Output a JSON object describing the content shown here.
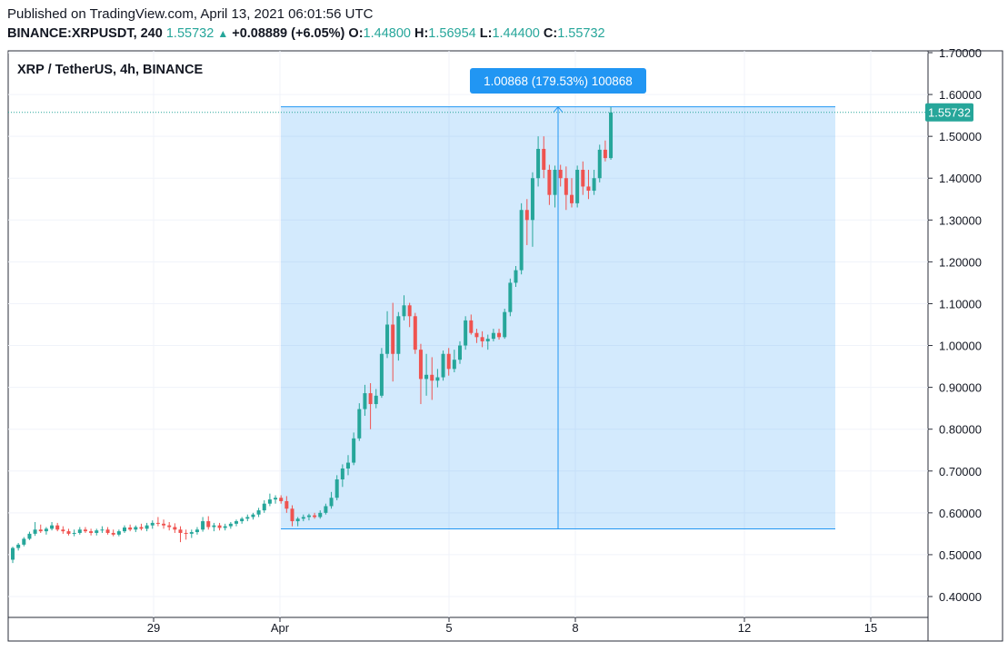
{
  "header": {
    "published": "Published on TradingView.com, April 13, 2021 06:01:56 UTC",
    "symbol": "BINANCE:XRPUSDT, 240",
    "last": "1.55732",
    "change": "+0.08889 (+6.05%)",
    "o_label": "O:",
    "o_value": "1.44800",
    "h_label": "H:",
    "h_value": "1.56954",
    "l_label": "L:",
    "l_value": "1.44400",
    "c_label": "C:",
    "c_value": "1.55732"
  },
  "chart_data": {
    "type": "candlestick",
    "title": "XRP / TetherUS, 4h, BINANCE",
    "ylim": [
      0.36,
      1.72
    ],
    "y_ticks": [
      "1.70000",
      "1.60000",
      "1.50000",
      "1.40000",
      "1.30000",
      "1.20000",
      "1.10000",
      "1.00000",
      "0.90000",
      "0.80000",
      "0.70000",
      "0.60000",
      "0.50000",
      "0.40000"
    ],
    "x_ticks": [
      "29",
      "Apr",
      "5",
      "8",
      "12",
      "15"
    ],
    "last_price_label": "1.55732",
    "last_price": 1.55732,
    "measure": {
      "label": "1.00868 (179.53%) 100868",
      "low": 0.5618,
      "high": 1.5705
    },
    "up_color": "#26a69a",
    "down_color": "#ef5350",
    "measure_color": "#2196f3",
    "candles": [
      [
        0.488,
        0.519,
        0.48,
        0.516
      ],
      [
        0.516,
        0.528,
        0.51,
        0.524
      ],
      [
        0.524,
        0.542,
        0.52,
        0.538
      ],
      [
        0.538,
        0.555,
        0.535,
        0.55
      ],
      [
        0.55,
        0.578,
        0.545,
        0.56
      ],
      [
        0.56,
        0.572,
        0.552,
        0.556
      ],
      [
        0.556,
        0.566,
        0.548,
        0.562
      ],
      [
        0.562,
        0.578,
        0.558,
        0.57
      ],
      [
        0.57,
        0.576,
        0.556,
        0.56
      ],
      [
        0.56,
        0.568,
        0.55,
        0.556
      ],
      [
        0.556,
        0.562,
        0.546,
        0.55
      ],
      [
        0.55,
        0.56,
        0.544,
        0.552
      ],
      [
        0.552,
        0.566,
        0.548,
        0.56
      ],
      [
        0.56,
        0.566,
        0.552,
        0.556
      ],
      [
        0.556,
        0.562,
        0.546,
        0.552
      ],
      [
        0.552,
        0.562,
        0.546,
        0.558
      ],
      [
        0.558,
        0.568,
        0.552,
        0.56
      ],
      [
        0.56,
        0.566,
        0.548,
        0.552
      ],
      [
        0.552,
        0.56,
        0.544,
        0.548
      ],
      [
        0.548,
        0.56,
        0.544,
        0.556
      ],
      [
        0.556,
        0.57,
        0.552,
        0.565
      ],
      [
        0.565,
        0.572,
        0.556,
        0.56
      ],
      [
        0.56,
        0.57,
        0.554,
        0.566
      ],
      [
        0.566,
        0.574,
        0.558,
        0.562
      ],
      [
        0.562,
        0.576,
        0.556,
        0.57
      ],
      [
        0.57,
        0.582,
        0.562,
        0.576
      ],
      [
        0.576,
        0.59,
        0.568,
        0.574
      ],
      [
        0.574,
        0.584,
        0.562,
        0.57
      ],
      [
        0.57,
        0.578,
        0.558,
        0.566
      ],
      [
        0.566,
        0.575,
        0.552,
        0.56
      ],
      [
        0.56,
        0.568,
        0.53,
        0.552
      ],
      [
        0.552,
        0.56,
        0.536,
        0.55
      ],
      [
        0.55,
        0.56,
        0.54,
        0.554
      ],
      [
        0.554,
        0.566,
        0.548,
        0.56
      ],
      [
        0.56,
        0.59,
        0.555,
        0.58
      ],
      [
        0.58,
        0.592,
        0.56,
        0.566
      ],
      [
        0.566,
        0.576,
        0.556,
        0.57
      ],
      [
        0.57,
        0.576,
        0.558,
        0.564
      ],
      [
        0.564,
        0.574,
        0.558,
        0.568
      ],
      [
        0.568,
        0.578,
        0.562,
        0.574
      ],
      [
        0.574,
        0.584,
        0.568,
        0.58
      ],
      [
        0.58,
        0.59,
        0.574,
        0.586
      ],
      [
        0.586,
        0.596,
        0.58,
        0.59
      ],
      [
        0.59,
        0.6,
        0.584,
        0.596
      ],
      [
        0.596,
        0.612,
        0.59,
        0.606
      ],
      [
        0.606,
        0.63,
        0.6,
        0.622
      ],
      [
        0.622,
        0.646,
        0.616,
        0.632
      ],
      [
        0.632,
        0.642,
        0.622,
        0.636
      ],
      [
        0.636,
        0.642,
        0.622,
        0.628
      ],
      [
        0.628,
        0.64,
        0.6,
        0.61
      ],
      [
        0.61,
        0.618,
        0.568,
        0.58
      ],
      [
        0.58,
        0.59,
        0.568,
        0.586
      ],
      [
        0.586,
        0.596,
        0.58,
        0.59
      ],
      [
        0.59,
        0.598,
        0.582,
        0.594
      ],
      [
        0.594,
        0.6,
        0.586,
        0.59
      ],
      [
        0.59,
        0.606,
        0.586,
        0.6
      ],
      [
        0.6,
        0.622,
        0.596,
        0.616
      ],
      [
        0.616,
        0.65,
        0.61,
        0.636
      ],
      [
        0.636,
        0.69,
        0.63,
        0.68
      ],
      [
        0.68,
        0.716,
        0.662,
        0.706
      ],
      [
        0.706,
        0.738,
        0.69,
        0.72
      ],
      [
        0.72,
        0.792,
        0.714,
        0.778
      ],
      [
        0.778,
        0.862,
        0.772,
        0.848
      ],
      [
        0.848,
        0.906,
        0.832,
        0.886
      ],
      [
        0.886,
        0.91,
        0.8,
        0.86
      ],
      [
        0.86,
        0.896,
        0.85,
        0.88
      ],
      [
        0.88,
        0.994,
        0.875,
        0.98
      ],
      [
        0.98,
        1.082,
        0.97,
        1.05
      ],
      [
        1.05,
        1.102,
        0.914,
        0.98
      ],
      [
        0.98,
        1.08,
        0.964,
        1.07
      ],
      [
        1.07,
        1.12,
        1.06,
        1.096
      ],
      [
        1.096,
        1.102,
        1.044,
        1.07
      ],
      [
        1.07,
        1.078,
        0.98,
        0.99
      ],
      [
        0.99,
        1.004,
        0.86,
        0.92
      ],
      [
        0.92,
        0.98,
        0.88,
        0.93
      ],
      [
        0.93,
        0.972,
        0.87,
        0.916
      ],
      [
        0.916,
        0.944,
        0.9,
        0.924
      ],
      [
        0.924,
        0.988,
        0.916,
        0.98
      ],
      [
        0.98,
        0.994,
        0.928,
        0.944
      ],
      [
        0.944,
        0.99,
        0.936,
        0.966
      ],
      [
        0.966,
        1.01,
        0.956,
        1.0
      ],
      [
        1.0,
        1.07,
        0.99,
        1.06
      ],
      [
        1.06,
        1.074,
        1.026,
        1.03
      ],
      [
        1.03,
        1.04,
        1.006,
        1.02
      ],
      [
        1.02,
        1.034,
        0.996,
        1.01
      ],
      [
        1.01,
        1.026,
        0.99,
        1.016
      ],
      [
        1.016,
        1.04,
        1.01,
        1.03
      ],
      [
        1.03,
        1.04,
        1.014,
        1.02
      ],
      [
        1.02,
        1.088,
        1.016,
        1.08
      ],
      [
        1.08,
        1.16,
        1.07,
        1.15
      ],
      [
        1.15,
        1.19,
        1.14,
        1.18
      ],
      [
        1.18,
        1.34,
        1.17,
        1.324
      ],
      [
        1.324,
        1.35,
        1.24,
        1.3
      ],
      [
        1.3,
        1.414,
        1.236,
        1.4
      ],
      [
        1.4,
        1.5,
        1.38,
        1.47
      ],
      [
        1.47,
        1.5,
        1.4,
        1.42
      ],
      [
        1.42,
        1.432,
        1.336,
        1.36
      ],
      [
        1.36,
        1.43,
        1.33,
        1.42
      ],
      [
        1.42,
        1.432,
        1.38,
        1.4
      ],
      [
        1.4,
        1.428,
        1.324,
        1.36
      ],
      [
        1.36,
        1.4,
        1.33,
        1.34
      ],
      [
        1.34,
        1.43,
        1.33,
        1.42
      ],
      [
        1.42,
        1.44,
        1.36,
        1.38
      ],
      [
        1.38,
        1.42,
        1.35,
        1.37
      ],
      [
        1.37,
        1.42,
        1.36,
        1.4
      ],
      [
        1.4,
        1.48,
        1.39,
        1.468
      ],
      [
        1.468,
        1.49,
        1.44,
        1.448
      ],
      [
        1.448,
        1.57,
        1.444,
        1.557
      ]
    ]
  }
}
